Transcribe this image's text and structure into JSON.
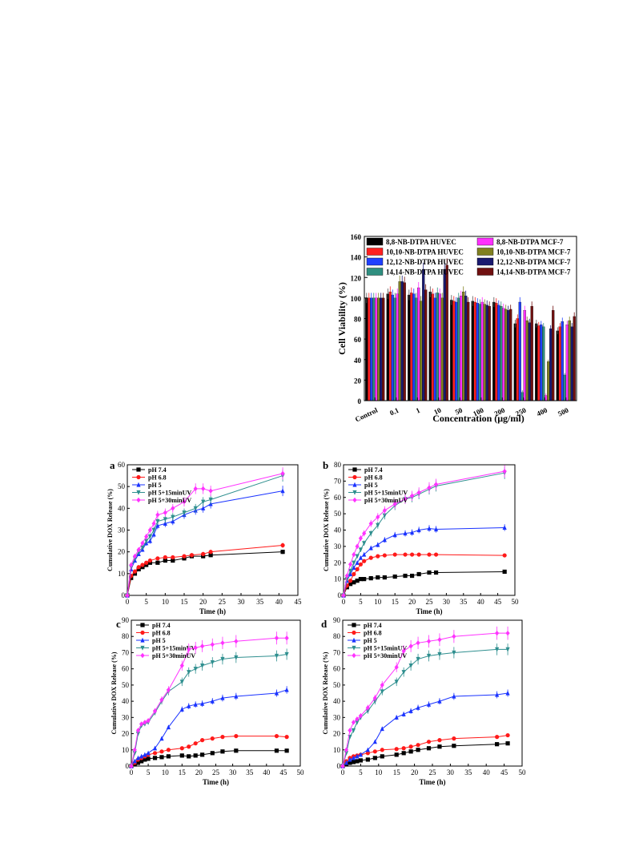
{
  "chart_data": [
    {
      "type": "bar",
      "panel": "",
      "xlabel": "Concentration (μg/ml)",
      "ylabel": "Cell Viability (%)",
      "ylim": [
        0,
        160
      ],
      "yticks": [
        0,
        20,
        40,
        60,
        80,
        100,
        120,
        140,
        160
      ],
      "categories": [
        "Control",
        "0.1",
        "1",
        "10",
        "50",
        "100",
        "200",
        "250",
        "400",
        "500"
      ],
      "legend": "top",
      "series": [
        {
          "name": "8,8-NB-DTPA    HUVEC",
          "color": "#000000",
          "values": [
            100,
            104,
            103,
            106,
            98,
            97,
            96,
            75,
            75,
            68
          ]
        },
        {
          "name": "10,10-NB-DTPA  HUVEC",
          "color": "#ff2020",
          "values": [
            100,
            106,
            105,
            104,
            97,
            96,
            95,
            80,
            73,
            72
          ]
        },
        {
          "name": "12,12-NB-DTPA  HUVEC",
          "color": "#2040ff",
          "values": [
            100,
            103,
            104,
            100,
            96,
            95,
            93,
            96,
            74,
            77
          ]
        },
        {
          "name": "14,14-NB-DTPA  HUVEC",
          "color": "#2f8f80",
          "values": [
            100,
            100,
            100,
            105,
            100,
            94,
            92,
            8,
            72,
            25
          ]
        },
        {
          "name": "8,8-NB-DTPA      MCF-7",
          "color": "#ff30ff",
          "values": [
            100,
            104,
            110,
            104,
            102,
            96,
            90,
            88,
            5,
            74
          ]
        },
        {
          "name": "10,10-NB-DTPA  MCF-7",
          "color": "#808020",
          "values": [
            100,
            116,
            97,
            100,
            106,
            94,
            89,
            78,
            38,
            78
          ]
        },
        {
          "name": "12,12-NB-DTPA  MCF-7",
          "color": "#1a1a70",
          "values": [
            100,
            116,
            128,
            128,
            102,
            93,
            88,
            76,
            70,
            72
          ]
        },
        {
          "name": "14,14-NB-DTPA  MCF-7",
          "color": "#701010",
          "values": [
            100,
            115,
            108,
            132,
            96,
            92,
            89,
            92,
            88,
            82
          ]
        }
      ]
    },
    {
      "type": "line",
      "panel": "a",
      "xlabel": "Time (h)",
      "ylabel": "Cumulative DOX Release (%)",
      "xlim": [
        0,
        45
      ],
      "ylim": [
        0,
        60
      ],
      "xticks": [
        0,
        5,
        10,
        15,
        20,
        25,
        30,
        35,
        40,
        45
      ],
      "yticks": [
        0,
        10,
        20,
        30,
        40,
        50,
        60
      ],
      "legend": "top-left",
      "series": [
        {
          "name": "pH 7.4",
          "color": "#000000",
          "marker": "square",
          "x": [
            0,
            1,
            2,
            3,
            4,
            5,
            6,
            8,
            10,
            12,
            15,
            17,
            20,
            22,
            41
          ],
          "y": [
            0,
            8,
            10,
            12,
            13,
            14,
            15,
            15,
            16,
            16,
            17,
            18,
            18,
            18.5,
            20
          ]
        },
        {
          "name": "pH 6.8",
          "color": "#ff1a1a",
          "marker": "circle",
          "x": [
            0,
            1,
            2,
            3,
            4,
            5,
            6,
            8,
            10,
            12,
            15,
            17,
            20,
            22,
            41
          ],
          "y": [
            0,
            9,
            11,
            13,
            14,
            15,
            16,
            17,
            17.5,
            17.5,
            18,
            18.5,
            19,
            20,
            23
          ]
        },
        {
          "name": "pH 5",
          "color": "#1a33ff",
          "marker": "triangle",
          "x": [
            0,
            1,
            2,
            3,
            4,
            5,
            6,
            7,
            8,
            10,
            12,
            15,
            18,
            20,
            22,
            41
          ],
          "y": [
            0,
            12,
            16,
            19,
            21,
            24,
            25,
            28,
            32,
            33,
            34,
            37,
            39,
            40,
            42,
            48
          ]
        },
        {
          "name": "pH 5+15minUV",
          "color": "#2f8f8f",
          "marker": "triangle-down",
          "x": [
            0,
            1,
            2,
            3,
            4,
            5,
            6,
            7,
            8,
            10,
            12,
            15,
            18,
            20,
            22,
            41
          ],
          "y": [
            0,
            13,
            17,
            20,
            22,
            25,
            27,
            30,
            34,
            35,
            36,
            38,
            40,
            43,
            44,
            55
          ]
        },
        {
          "name": "pH 5+30minUV",
          "color": "#ff33ff",
          "marker": "diamond",
          "x": [
            0,
            1,
            2,
            3,
            4,
            5,
            6,
            7,
            8,
            10,
            12,
            15,
            18,
            20,
            22,
            41
          ],
          "y": [
            0,
            14,
            18,
            21,
            24,
            27,
            30,
            33,
            37,
            38,
            40,
            43,
            49,
            49,
            48,
            56
          ]
        }
      ]
    },
    {
      "type": "line",
      "panel": "b",
      "xlabel": "Time (h)",
      "ylabel": "Cumulative DOX Release (%)",
      "xlim": [
        0,
        50
      ],
      "ylim": [
        0,
        80
      ],
      "xticks": [
        0,
        5,
        10,
        15,
        20,
        25,
        30,
        35,
        40,
        45,
        50
      ],
      "yticks": [
        0,
        10,
        20,
        30,
        40,
        50,
        60,
        70,
        80
      ],
      "legend": "top-left",
      "series": [
        {
          "name": "pH 7.4",
          "color": "#000000",
          "marker": "square",
          "x": [
            0,
            1,
            2,
            3,
            4,
            5,
            6,
            8,
            10,
            12,
            15,
            18,
            20,
            22,
            25,
            27,
            47
          ],
          "y": [
            0,
            5,
            7,
            8,
            9,
            10,
            10,
            10.5,
            11,
            11,
            11.5,
            12,
            12,
            13,
            14,
            14,
            14.5
          ]
        },
        {
          "name": "pH 6.8",
          "color": "#ff1a1a",
          "marker": "circle",
          "x": [
            0,
            1,
            2,
            3,
            4,
            5,
            6,
            8,
            10,
            12,
            15,
            18,
            20,
            22,
            25,
            27,
            47
          ],
          "y": [
            0,
            6,
            9,
            13,
            16,
            19,
            21,
            23,
            24,
            24.5,
            25,
            25,
            25,
            25,
            25,
            25,
            24.5
          ]
        },
        {
          "name": "pH 5",
          "color": "#1a33ff",
          "marker": "triangle",
          "x": [
            0,
            1,
            2,
            3,
            4,
            5,
            6,
            8,
            10,
            12,
            15,
            18,
            20,
            22,
            25,
            27,
            47
          ],
          "y": [
            0,
            9,
            13,
            17,
            20,
            23,
            25,
            29,
            31,
            34,
            37,
            38,
            38.5,
            40,
            41,
            40.5,
            41.5
          ]
        },
        {
          "name": "pH 5+15minUV",
          "color": "#2f8f8f",
          "marker": "triangle-down",
          "x": [
            0,
            1,
            2,
            3,
            4,
            5,
            6,
            8,
            10,
            12,
            15,
            18,
            20,
            22,
            25,
            27,
            47
          ],
          "y": [
            0,
            10,
            15,
            20,
            24,
            28,
            32,
            38,
            43,
            49,
            55,
            59,
            60,
            62,
            65,
            67,
            75
          ]
        },
        {
          "name": "pH 5+30minUV",
          "color": "#ff33ff",
          "marker": "diamond",
          "x": [
            0,
            1,
            2,
            3,
            4,
            5,
            6,
            8,
            10,
            12,
            15,
            18,
            20,
            22,
            25,
            27,
            47
          ],
          "y": [
            0,
            12,
            19,
            25,
            30,
            35,
            38,
            44,
            48,
            52,
            56,
            59,
            61,
            63,
            66,
            68,
            76
          ]
        }
      ]
    },
    {
      "type": "line",
      "panel": "c",
      "xlabel": "Time (h)",
      "ylabel": "Cumulative DOX Release (%)",
      "xlim": [
        0,
        50
      ],
      "ylim": [
        0,
        90
      ],
      "xticks": [
        0,
        5,
        10,
        15,
        20,
        25,
        30,
        35,
        40,
        45,
        50
      ],
      "yticks": [
        0,
        10,
        20,
        30,
        40,
        50,
        60,
        70,
        80,
        90
      ],
      "legend": "top-left",
      "series": [
        {
          "name": "pH 7.4",
          "color": "#000000",
          "marker": "square",
          "x": [
            0,
            1,
            2,
            3,
            4,
            5,
            7,
            9,
            11,
            15,
            17,
            19,
            21,
            24,
            27,
            31,
            43,
            46
          ],
          "y": [
            0,
            1,
            2,
            3,
            4,
            4.5,
            5,
            5.5,
            6,
            6.5,
            6,
            6.5,
            7,
            8,
            9,
            9.5,
            9.5,
            9.5
          ]
        },
        {
          "name": "pH 6.8",
          "color": "#ff1a1a",
          "marker": "circle",
          "x": [
            0,
            1,
            2,
            3,
            4,
            5,
            7,
            9,
            11,
            15,
            17,
            19,
            21,
            24,
            27,
            31,
            43,
            46
          ],
          "y": [
            0,
            2,
            4,
            5,
            6,
            7,
            8,
            9,
            10,
            11,
            12,
            14,
            16,
            17,
            18,
            18.5,
            18.5,
            18
          ]
        },
        {
          "name": "pH 5",
          "color": "#1a33ff",
          "marker": "triangle",
          "x": [
            0,
            1,
            2,
            3,
            4,
            5,
            7,
            9,
            11,
            15,
            17,
            19,
            21,
            24,
            27,
            31,
            43,
            46
          ],
          "y": [
            0,
            3,
            5,
            6,
            7,
            8,
            11,
            17,
            24,
            35,
            37,
            38,
            38.5,
            40,
            42,
            43,
            45,
            47
          ]
        },
        {
          "name": "pH 5+15minUV",
          "color": "#2f8f8f",
          "marker": "triangle-down",
          "x": [
            0,
            1,
            2,
            3,
            4,
            5,
            7,
            9,
            11,
            15,
            17,
            19,
            21,
            24,
            27,
            31,
            43,
            46
          ],
          "y": [
            0,
            8,
            20,
            25,
            26,
            27,
            33,
            40,
            46,
            52,
            58,
            60,
            62,
            64,
            66,
            67,
            68,
            69
          ]
        },
        {
          "name": "pH 5+30minUV",
          "color": "#ff33ff",
          "marker": "diamond",
          "x": [
            0,
            1,
            2,
            3,
            4,
            5,
            7,
            9,
            11,
            15,
            17,
            19,
            21,
            24,
            27,
            31,
            43,
            46
          ],
          "y": [
            0,
            10,
            22,
            26,
            27,
            28,
            34,
            41,
            47,
            62,
            72,
            73,
            74,
            75,
            76,
            77,
            79,
            79
          ]
        }
      ]
    },
    {
      "type": "line",
      "panel": "d",
      "xlabel": "Time (h)",
      "ylabel": "Cumulative DOX Release (%)",
      "xlim": [
        0,
        50
      ],
      "ylim": [
        0,
        90
      ],
      "xticks": [
        0,
        5,
        10,
        15,
        20,
        25,
        30,
        35,
        40,
        45,
        50
      ],
      "yticks": [
        0,
        10,
        20,
        30,
        40,
        50,
        60,
        70,
        80,
        90
      ],
      "legend": "top-left",
      "series": [
        {
          "name": "pH 7.4",
          "color": "#000000",
          "marker": "square",
          "x": [
            0,
            1,
            2,
            3,
            4,
            5,
            7,
            9,
            11,
            15,
            17,
            19,
            21,
            24,
            27,
            31,
            43,
            46
          ],
          "y": [
            0,
            1,
            2,
            2.5,
            3,
            3.5,
            4,
            5,
            6,
            7,
            8,
            9,
            10,
            11,
            12,
            12.5,
            13.5,
            14
          ]
        },
        {
          "name": "pH 6.8",
          "color": "#ff1a1a",
          "marker": "circle",
          "x": [
            0,
            1,
            2,
            3,
            4,
            5,
            7,
            9,
            11,
            15,
            17,
            19,
            21,
            24,
            27,
            31,
            43,
            46
          ],
          "y": [
            0,
            3,
            5,
            6,
            6.5,
            7,
            8,
            9,
            10,
            10.5,
            11,
            12,
            13,
            15,
            16,
            17,
            18,
            19
          ]
        },
        {
          "name": "pH 5",
          "color": "#1a33ff",
          "marker": "triangle",
          "x": [
            0,
            1,
            2,
            3,
            4,
            5,
            7,
            9,
            11,
            15,
            17,
            19,
            21,
            24,
            27,
            31,
            43,
            46
          ],
          "y": [
            0,
            2,
            4,
            5,
            6,
            7,
            10,
            15,
            23,
            30,
            32,
            34,
            36,
            38,
            40,
            43,
            44,
            45
          ]
        },
        {
          "name": "pH 5+15minUV",
          "color": "#2f8f8f",
          "marker": "triangle-down",
          "x": [
            0,
            1,
            2,
            3,
            4,
            5,
            7,
            9,
            11,
            15,
            17,
            19,
            21,
            24,
            27,
            31,
            43,
            46
          ],
          "y": [
            0,
            8,
            18,
            22,
            27,
            30,
            34,
            40,
            46,
            52,
            58,
            62,
            66,
            68,
            69,
            70,
            72,
            72
          ]
        },
        {
          "name": "pH 5+30minUV",
          "color": "#ff33ff",
          "marker": "diamond",
          "x": [
            0,
            1,
            2,
            3,
            4,
            5,
            7,
            9,
            11,
            15,
            17,
            19,
            21,
            24,
            27,
            31,
            43,
            46
          ],
          "y": [
            0,
            10,
            22,
            27,
            29,
            31,
            36,
            42,
            50,
            61,
            71,
            74,
            76,
            77,
            78,
            80,
            82,
            82
          ]
        }
      ]
    }
  ]
}
